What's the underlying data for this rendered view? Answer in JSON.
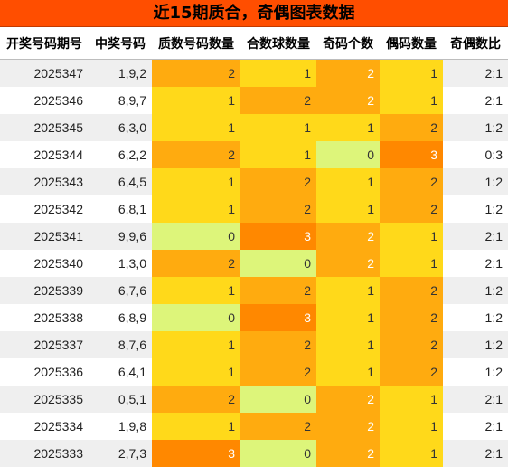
{
  "title": "近15期质合，奇偶图表数据",
  "headers": [
    "开奖号码期号",
    "中奖号码",
    "质数号码数量",
    "合数球数量",
    "奇码个数",
    "偶码数量",
    "奇偶数比"
  ],
  "rows": [
    {
      "issue": "2025347",
      "numbers": "1,9,2",
      "prime": "2",
      "composite": "1",
      "odd": "2",
      "even": "1",
      "ratio": "2:1"
    },
    {
      "issue": "2025346",
      "numbers": "8,9,7",
      "prime": "1",
      "composite": "2",
      "odd": "2",
      "even": "1",
      "ratio": "2:1"
    },
    {
      "issue": "2025345",
      "numbers": "6,3,0",
      "prime": "1",
      "composite": "1",
      "odd": "1",
      "even": "2",
      "ratio": "1:2"
    },
    {
      "issue": "2025344",
      "numbers": "6,2,2",
      "prime": "2",
      "composite": "1",
      "odd": "0",
      "even": "3",
      "ratio": "0:3"
    },
    {
      "issue": "2025343",
      "numbers": "6,4,5",
      "prime": "1",
      "composite": "2",
      "odd": "1",
      "even": "2",
      "ratio": "1:2"
    },
    {
      "issue": "2025342",
      "numbers": "6,8,1",
      "prime": "1",
      "composite": "2",
      "odd": "1",
      "even": "2",
      "ratio": "1:2"
    },
    {
      "issue": "2025341",
      "numbers": "9,9,6",
      "prime": "0",
      "composite": "3",
      "odd": "2",
      "even": "1",
      "ratio": "2:1"
    },
    {
      "issue": "2025340",
      "numbers": "1,3,0",
      "prime": "2",
      "composite": "0",
      "odd": "2",
      "even": "1",
      "ratio": "2:1"
    },
    {
      "issue": "2025339",
      "numbers": "6,7,6",
      "prime": "1",
      "composite": "2",
      "odd": "1",
      "even": "2",
      "ratio": "1:2"
    },
    {
      "issue": "2025338",
      "numbers": "6,8,9",
      "prime": "0",
      "composite": "3",
      "odd": "1",
      "even": "2",
      "ratio": "1:2"
    },
    {
      "issue": "2025337",
      "numbers": "8,7,6",
      "prime": "1",
      "composite": "2",
      "odd": "1",
      "even": "2",
      "ratio": "1:2"
    },
    {
      "issue": "2025336",
      "numbers": "6,4,1",
      "prime": "1",
      "composite": "2",
      "odd": "1",
      "even": "2",
      "ratio": "1:2"
    },
    {
      "issue": "2025335",
      "numbers": "0,5,1",
      "prime": "2",
      "composite": "0",
      "odd": "2",
      "even": "1",
      "ratio": "2:1"
    },
    {
      "issue": "2025334",
      "numbers": "1,9,8",
      "prime": "1",
      "composite": "2",
      "odd": "2",
      "even": "1",
      "ratio": "2:1"
    },
    {
      "issue": "2025333",
      "numbers": "2,7,3",
      "prime": "3",
      "composite": "0",
      "odd": "2",
      "even": "1",
      "ratio": "2:1"
    }
  ],
  "heat_colors": {
    "0": "#ddf57a",
    "1": "#ffd91a",
    "2": "#ffab0f",
    "3": "#ff8800"
  },
  "title_bg": "#ff4e00"
}
